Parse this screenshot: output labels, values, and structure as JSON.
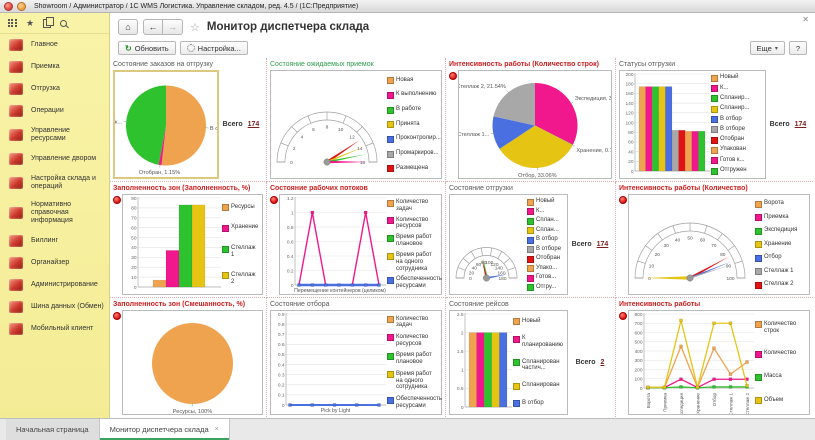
{
  "window": {
    "title": "Showroom / Администратор / 1С WMS Логистика. Управление складом, ред. 4.5 /  (1С:Предприятие)"
  },
  "icons": {
    "home": "⌂",
    "back": "←",
    "forward": "→",
    "star_outline": "☆",
    "star": "★",
    "refresh": "↻",
    "dropdown": "▾",
    "close": "✕",
    "tab_close": "×"
  },
  "nav": {
    "title": "Монитор диспетчера склада"
  },
  "toolbar": {
    "refresh_label": "Обновить",
    "settings_label": "Настройка...",
    "more_label": "Еще",
    "help_label": "?"
  },
  "tabs": [
    {
      "name": "home-page",
      "label": "Начальная страница",
      "active": false
    },
    {
      "name": "dispatcher-monitor",
      "label": "Монитор диспетчера склада",
      "active": true
    }
  ],
  "sidebar": {
    "items": [
      {
        "label": "Главное",
        "name": "main",
        "icon": "desk-icon"
      },
      {
        "label": "Приемка",
        "name": "receiving",
        "icon": "receiving-box-icon"
      },
      {
        "label": "Отгрузка",
        "name": "shipping",
        "icon": "truck-icon"
      },
      {
        "label": "Операции",
        "name": "operations",
        "icon": "clipboard-icon"
      },
      {
        "label": "Управление ресурсами",
        "name": "resources",
        "icon": "worker-icon"
      },
      {
        "label": "Управление двором",
        "name": "yard",
        "icon": "yard-truck-icon"
      },
      {
        "label": "Настройка склада и операций",
        "name": "warehouse-settings",
        "icon": "shelves-icon"
      },
      {
        "label": "Нормативно справочная информация",
        "name": "reference-info",
        "icon": "books-icon"
      },
      {
        "label": "Биллинг",
        "name": "billing",
        "icon": "billing-icon"
      },
      {
        "label": "Органайзер",
        "name": "organizer",
        "icon": "organizer-icon"
      },
      {
        "label": "Администрирование",
        "name": "administration",
        "icon": "administration-icon"
      },
      {
        "label": "Шина данных (Обмен)",
        "name": "data-bus",
        "icon": "data-bus-icon"
      },
      {
        "label": "Мобильный клиент",
        "name": "mobile-client",
        "icon": "phone-icon"
      }
    ]
  },
  "panels": [
    {
      "name": "shipment-orders-state",
      "title": "Состояние заказов на отгрузку",
      "title_color": "#5a5a5a",
      "alarm": false,
      "box": "gold",
      "total": {
        "label": "Всего",
        "value": "174"
      },
      "chart": {
        "type": "pie",
        "slices": [
          {
            "label": "В отбор...",
            "value": 51.8,
            "color": "#EFA34F"
          },
          {
            "label": "Отобран, 1.15%",
            "value": 1.15,
            "color": "#F0188C"
          },
          {
            "label": "Отгруж...",
            "value": 47.05,
            "color": "#2EC22E"
          }
        ]
      }
    },
    {
      "name": "expected-receipts-state",
      "title": "Состояние ожидаемых приемок",
      "title_color": "#2E9E50",
      "alarm": false,
      "chart": {
        "type": "gauge",
        "min": 0,
        "max": 16,
        "step": 2,
        "needles": [
          {
            "value": 13,
            "color": "#E01414",
            "w": 2.6
          },
          {
            "value": 14,
            "color": "#E6C414",
            "w": 2
          },
          {
            "value": 15,
            "color": "#2EC22E",
            "w": 2
          },
          {
            "value": 16,
            "color": "#F0188C",
            "w": 2.6
          }
        ]
      },
      "legend": [
        {
          "label": "Новая",
          "color": "#EFA34F"
        },
        {
          "label": "К выполнению",
          "color": "#F0188C"
        },
        {
          "label": "В работе",
          "color": "#2EC22E"
        },
        {
          "label": "Принята",
          "color": "#E6C414"
        },
        {
          "label": "Проконтролир...",
          "color": "#4A6FE0"
        },
        {
          "label": "Промаркиров...",
          "color": "#A8A8A8"
        },
        {
          "label": "Размещена",
          "color": "#E01414"
        }
      ]
    },
    {
      "name": "work-intensity-rows",
      "title": "Интенсивность работы (Количество строк)",
      "title_color": "#CC1F1F",
      "alarm": true,
      "chart": {
        "type": "pie",
        "slices": [
          {
            "label": "Экспедиция, 3...",
            "value": 32.5,
            "color": "#F0188C"
          },
          {
            "label": "Хранение, 0.15%",
            "value": 0.15,
            "color": "#2EC22E"
          },
          {
            "label": "Отбор, 33.06%",
            "value": 33.06,
            "color": "#E6C414"
          },
          {
            "label": "Стеллаж 1...",
            "value": 12.75,
            "color": "#4A6FE0"
          },
          {
            "label": "Стеллаж 2, 21.54%",
            "value": 21.54,
            "color": "#A8A8A8"
          }
        ]
      }
    },
    {
      "name": "shipping-statuses",
      "title": "Статусы отгрузки",
      "title_color": "#5a5a5a",
      "alarm": false,
      "total": {
        "label": "Всего",
        "value": "174"
      },
      "chart": {
        "type": "bar",
        "ymax": 200,
        "ystep": 20,
        "bars": [
          {
            "value": 174,
            "color": "#EFA34F"
          },
          {
            "value": 174,
            "color": "#F0188C"
          },
          {
            "value": 174,
            "color": "#2EC22E"
          },
          {
            "value": 174,
            "color": "#E6C414"
          },
          {
            "value": 174,
            "color": "#4A6FE0"
          },
          {
            "value": 84,
            "color": "#A8A8A8"
          },
          {
            "value": 84,
            "color": "#E01414"
          },
          {
            "value": 82,
            "color": "#EFA34F"
          },
          {
            "value": 82,
            "color": "#F0188C"
          },
          {
            "value": 82,
            "color": "#2EC22E"
          }
        ]
      },
      "legend": [
        {
          "label": "Новый",
          "color": "#EFA34F"
        },
        {
          "label": "К...",
          "color": "#F0188C"
        },
        {
          "label": "Спланир...",
          "color": "#2EC22E"
        },
        {
          "label": "Спланир...",
          "color": "#E6C414"
        },
        {
          "label": "В отбор",
          "color": "#4A6FE0"
        },
        {
          "label": "В отборе",
          "color": "#A8A8A8"
        },
        {
          "label": "Отобран",
          "color": "#E01414"
        },
        {
          "label": "Упакован",
          "color": "#EFA34F"
        },
        {
          "label": "Готов к...",
          "color": "#F0188C"
        },
        {
          "label": "Отгружен",
          "color": "#2EC22E"
        }
      ]
    },
    {
      "name": "zones-fullness",
      "title": "Заполненность зон (Заполненность, %)",
      "title_color": "#CC1F1F",
      "alarm": true,
      "chart": {
        "type": "bar",
        "ymax": 90,
        "ystep": 10,
        "bars": [
          {
            "value": 7,
            "color": "#EFA34F"
          },
          {
            "value": 37,
            "color": "#F0188C"
          },
          {
            "value": 83,
            "color": "#2EC22E"
          },
          {
            "value": 83,
            "color": "#E6C414"
          }
        ]
      },
      "legend": [
        {
          "label": "Ресурсы",
          "color": "#EFA34F"
        },
        {
          "label": "Хранение",
          "color": "#F0188C"
        },
        {
          "label": "Стеллаж 1",
          "color": "#2EC22E"
        },
        {
          "label": "Стеллаж 2",
          "color": "#E6C414"
        }
      ]
    },
    {
      "name": "workflows-state",
      "title": "Состояние рабочих потоков",
      "title_color": "#CC1F1F",
      "alarm": true,
      "chart": {
        "type": "line",
        "ymax": 1.2,
        "ystep": 0.2,
        "xlabel": "Перемещение контейнеров (целиком)",
        "series": [
          {
            "color": "#F0188C",
            "width": 1.4,
            "marker": "peaks",
            "values": [
              0,
              1,
              0,
              0,
              0,
              1,
              0
            ]
          },
          {
            "color": "#4A6FE0",
            "width": 2.6,
            "marker": "all",
            "values": [
              0,
              0,
              0,
              0,
              0,
              0,
              0
            ]
          }
        ]
      },
      "legend": [
        {
          "label": "Количество задач",
          "color": "#EFA34F"
        },
        {
          "label": "Количество ресурсов",
          "color": "#F0188C"
        },
        {
          "label": "Время работ плановое",
          "color": "#2EC22E"
        },
        {
          "label": "Время работ на одного сотрудника",
          "color": "#E6C414"
        },
        {
          "label": "Обеспеченность ресурсами",
          "color": "#4A6FE0"
        }
      ]
    },
    {
      "name": "shipping-state",
      "title": "Состояние отгрузки",
      "title_color": "#5a5a5a",
      "alarm": false,
      "total": {
        "label": "Всего",
        "value": "174"
      },
      "chart": {
        "type": "gauge",
        "min": 0,
        "max": 180,
        "step": 20,
        "needles": [
          {
            "value": 170,
            "color": "#4A6FE0",
            "w": 2
          },
          {
            "value": 80,
            "color": "#2EC22E",
            "w": 2.6
          },
          {
            "value": 76,
            "color": "#E01414",
            "w": 1.6
          }
        ]
      },
      "legend": [
        {
          "label": "Новый",
          "color": "#EFA34F"
        },
        {
          "label": "К...",
          "color": "#F0188C"
        },
        {
          "label": "Сплан...",
          "color": "#2EC22E"
        },
        {
          "label": "Сплан...",
          "color": "#E6C414"
        },
        {
          "label": "В отбор",
          "color": "#4A6FE0"
        },
        {
          "label": "В отборе",
          "color": "#A8A8A8"
        },
        {
          "label": "Отобран",
          "color": "#E01414"
        },
        {
          "label": "Упако...",
          "color": "#EFA34F"
        },
        {
          "label": "Готов...",
          "color": "#F0188C"
        },
        {
          "label": "Отгру...",
          "color": "#2EC22E"
        }
      ]
    },
    {
      "name": "work-intensity-count",
      "title": "Интенсивность работы (Количество)",
      "title_color": "#CC1F1F",
      "alarm": true,
      "chart": {
        "type": "gauge",
        "min": 0,
        "max": 100,
        "step": 10,
        "needles": [
          {
            "value": 0,
            "color": "#E6C414",
            "w": 3.4
          },
          {
            "value": 84,
            "color": "#E01414",
            "w": 2.6
          },
          {
            "value": 88,
            "color": "#4A6FE0",
            "w": 2
          },
          {
            "value": 90,
            "color": "#A8A8A8",
            "w": 1.4
          }
        ]
      },
      "legend": [
        {
          "label": "Ворота",
          "color": "#EFA34F"
        },
        {
          "label": "Приемка",
          "color": "#F0188C"
        },
        {
          "label": "Экспедиция",
          "color": "#2EC22E"
        },
        {
          "label": "Хранение",
          "color": "#E6C414"
        },
        {
          "label": "Отбор",
          "color": "#4A6FE0"
        },
        {
          "label": "Стеллаж 1",
          "color": "#A8A8A8"
        },
        {
          "label": "Стеллаж 2",
          "color": "#E01414"
        }
      ]
    },
    {
      "name": "zones-mixedness",
      "title": "Заполненность зон (Смешанность, %)",
      "title_color": "#CC1F1F",
      "alarm": true,
      "chart": {
        "type": "pie",
        "slices": [
          {
            "label": "Ресурсы, 100%",
            "value": 100,
            "color": "#EFA34F"
          }
        ]
      }
    },
    {
      "name": "picking-state",
      "title": "Состояние отбора",
      "title_color": "#5a5a5a",
      "alarm": false,
      "chart": {
        "type": "line",
        "ymax": 0.9,
        "ystep": 0.1,
        "xlabel": "Pick by Light",
        "series": [
          {
            "color": "#4A6FE0",
            "width": 2,
            "marker": "all",
            "values": [
              0,
              0,
              0,
              0,
              0
            ]
          }
        ]
      },
      "legend": [
        {
          "label": "Количество задач",
          "color": "#EFA34F"
        },
        {
          "label": "Количество ресурсов",
          "color": "#F0188C"
        },
        {
          "label": "Время работ плановое",
          "color": "#2EC22E"
        },
        {
          "label": "Время работ на одного сотрудника",
          "color": "#E6C414"
        },
        {
          "label": "Обеспеченность ресурсами",
          "color": "#4A6FE0"
        }
      ]
    },
    {
      "name": "trips-state",
      "title": "Состояние рейсов",
      "title_color": "#5a5a5a",
      "alarm": false,
      "total": {
        "label": "Всего",
        "value": "2"
      },
      "chart": {
        "type": "bar",
        "ymax": 2.5,
        "ystep": 0.5,
        "bars": [
          {
            "value": 2,
            "color": "#EFA34F"
          },
          {
            "value": 2,
            "color": "#F0188C"
          },
          {
            "value": 2,
            "color": "#2EC22E"
          },
          {
            "value": 2,
            "color": "#E6C414"
          },
          {
            "value": 2,
            "color": "#4A6FE0"
          }
        ]
      },
      "legend": [
        {
          "label": "Новый",
          "color": "#EFA34F"
        },
        {
          "label": "К планированию",
          "color": "#F0188C"
        },
        {
          "label": "Спланирован частич...",
          "color": "#2EC22E"
        },
        {
          "label": "Спланирован",
          "color": "#E6C414"
        },
        {
          "label": "В отбор",
          "color": "#4A6FE0"
        }
      ]
    },
    {
      "name": "work-intensity",
      "title": "Интенсивность работы",
      "title_color": "#CC1F1F",
      "alarm": true,
      "chart": {
        "type": "line",
        "ymax": 800,
        "ystep": 100,
        "categories": [
          "Ворота",
          "Приемка",
          "Экспедиция",
          "Хранение",
          "Отбор",
          "Стеллаж 1",
          "Стеллаж 2"
        ],
        "series": [
          {
            "name": "Количество строк",
            "color": "#EFA34F",
            "width": 1.3,
            "marker": "all",
            "values": [
              5,
              5,
              450,
              5,
              430,
              150,
              280
            ]
          },
          {
            "name": "Количество",
            "color": "#F0188C",
            "width": 1.3,
            "marker": "all",
            "values": [
              5,
              5,
              95,
              5,
              95,
              95,
              95
            ]
          },
          {
            "name": "Масса",
            "color": "#2EC22E",
            "width": 1.3,
            "marker": "all",
            "values": [
              3,
              3,
              12,
              3,
              12,
              12,
              12
            ]
          },
          {
            "name": "Объем",
            "color": "#E6C414",
            "width": 1.3,
            "marker": "all",
            "values": [
              8,
              8,
              730,
              8,
              700,
              700,
              25
            ]
          }
        ]
      },
      "legend": [
        {
          "label": "Количество строк",
          "color": "#EFA34F"
        },
        {
          "label": "Количество",
          "color": "#F0188C"
        },
        {
          "label": "Масса",
          "color": "#2EC22E"
        },
        {
          "label": "Объем",
          "color": "#E6C414"
        }
      ]
    }
  ]
}
